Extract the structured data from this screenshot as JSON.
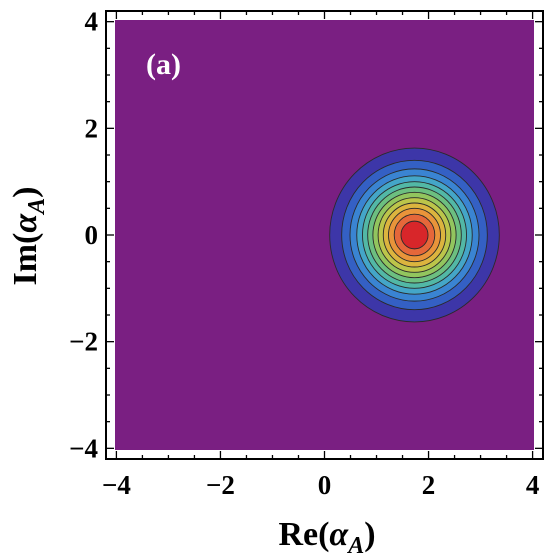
{
  "chart_data": {
    "type": "contour",
    "panel_label": "(a)",
    "xlabel": {
      "prefix": "Re(",
      "symbol": "α",
      "subscript": "A",
      "suffix": ")"
    },
    "ylabel": {
      "prefix": "Im(",
      "symbol": "α",
      "subscript": "A",
      "suffix": ")"
    },
    "xlim": [
      -4.2,
      4.2
    ],
    "ylim": [
      -4.2,
      4.2
    ],
    "xticks": [
      -4,
      -2,
      0,
      2,
      4
    ],
    "yticks": [
      -4,
      -2,
      0,
      2,
      4
    ],
    "xtick_labels": [
      "−4",
      "−2",
      "0",
      "2",
      "4"
    ],
    "ytick_labels": [
      "−4",
      "−2",
      "0",
      "2",
      "4"
    ],
    "grid": false,
    "background_color": "#7a1f82",
    "peak_center": {
      "x": 1.73,
      "y": 0.0
    },
    "contours": [
      {
        "radius": 1.63,
        "color": "#3d36a8"
      },
      {
        "radius": 1.4,
        "color": "#3460c4"
      },
      {
        "radius": 1.24,
        "color": "#3a84d2"
      },
      {
        "radius": 1.11,
        "color": "#44a6c8"
      },
      {
        "radius": 1.0,
        "color": "#52b8a6"
      },
      {
        "radius": 0.9,
        "color": "#6cbf80"
      },
      {
        "radius": 0.8,
        "color": "#92c55e"
      },
      {
        "radius": 0.7,
        "color": "#bcc54a"
      },
      {
        "radius": 0.6,
        "color": "#dcb43e"
      },
      {
        "radius": 0.5,
        "color": "#e9943a"
      },
      {
        "radius": 0.39,
        "color": "#e5673a"
      },
      {
        "radius": 0.26,
        "color": "#d8262a"
      }
    ]
  }
}
